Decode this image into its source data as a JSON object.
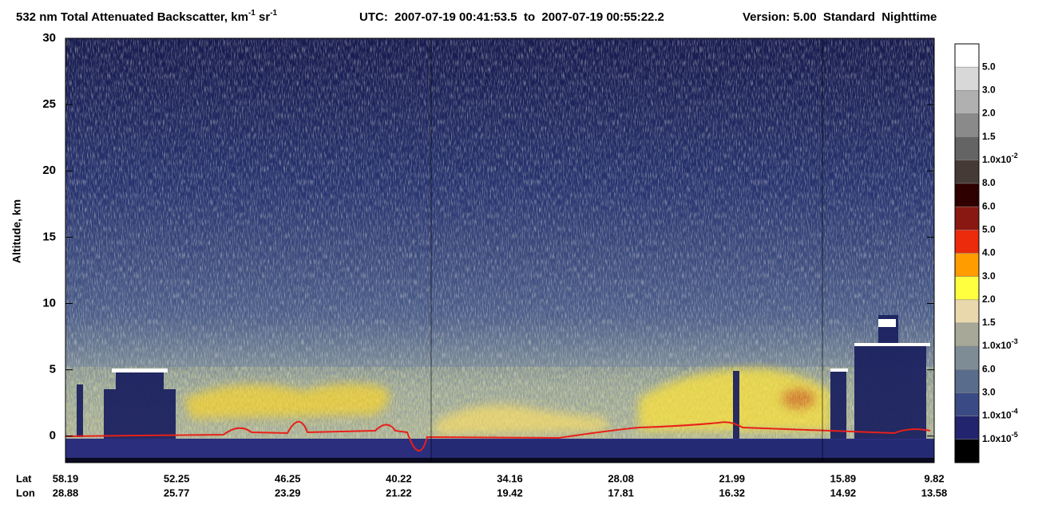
{
  "chart_data": {
    "type": "heatmap",
    "title": {
      "text": "532 nm Total Attenuated Backscatter, km",
      "sup": "-1",
      "text2": " sr",
      "sup2": "-1"
    },
    "utc": "UTC:  2007-07-19 00:41:53.5  to  2007-07-19 00:55:22.2",
    "version": "Version: 5.00  Standard  Nighttime",
    "ylabel": "Altitude, km",
    "ylim": [
      -2,
      30
    ],
    "yticks": [
      0,
      5,
      10,
      15,
      20,
      25,
      30
    ],
    "x_row_labels": [
      "Lat",
      "Lon"
    ],
    "lat": [
      58.19,
      52.25,
      46.25,
      40.22,
      34.16,
      28.08,
      21.99,
      15.89,
      9.82
    ],
    "lon": [
      28.88,
      25.77,
      23.29,
      21.22,
      19.42,
      17.81,
      16.32,
      14.92,
      13.58
    ],
    "colorbar": {
      "labels": [
        "5.0",
        "3.0",
        "2.0",
        "1.5",
        {
          "base": "1.0x10",
          "sup": "-2"
        },
        "8.0",
        "6.0",
        "5.0",
        "4.0",
        "3.0",
        "2.0",
        "1.5",
        {
          "base": "1.0x10",
          "sup": "-3"
        },
        "6.0",
        "3.0",
        {
          "base": "1.0x10",
          "sup": "-4"
        },
        {
          "base": "1.0x10",
          "sup": "-5"
        }
      ],
      "colors": [
        "#ffffff",
        "#d8d8d8",
        "#b0b0b0",
        "#8a8a8a",
        "#646464",
        "#463a36",
        "#2e0000",
        "#8a1812",
        "#ec2a0c",
        "#ff9c00",
        "#ffff40",
        "#e8d8ac",
        "#a8a898",
        "#7e8c96",
        "#5a6c8c",
        "#3a4a84",
        "#22246e",
        "#000000"
      ]
    }
  }
}
